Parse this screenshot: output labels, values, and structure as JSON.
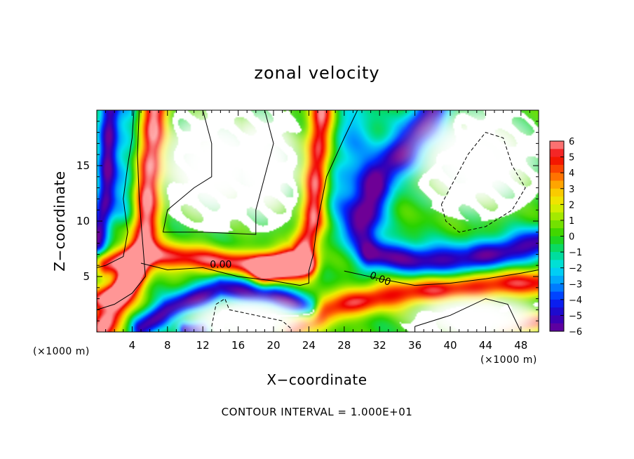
{
  "chart_data": {
    "type": "heatmap",
    "title": "zonal velocity",
    "xlabel": "X−coordinate",
    "ylabel": "Z−coordinate",
    "x_unit": "(×1000 m)",
    "z_unit": "(×1000 m)",
    "xlim": [
      0,
      50
    ],
    "ylim": [
      0,
      20
    ],
    "x_ticks": [
      4,
      8,
      12,
      16,
      20,
      24,
      28,
      32,
      36,
      40,
      44,
      48
    ],
    "x_tick_labels": [
      "4",
      "8",
      "12",
      "16",
      "20",
      "24",
      "28",
      "32",
      "36",
      "40",
      "44",
      "48"
    ],
    "y_ticks": [
      5,
      10,
      15
    ],
    "y_tick_labels": [
      "5",
      "10",
      "15"
    ],
    "colorbar": {
      "min": -6,
      "max": 6,
      "ticks": [
        6,
        5,
        4,
        3,
        2,
        1,
        0,
        -1,
        -2,
        -3,
        -4,
        -5,
        -6
      ],
      "tick_labels": [
        "6",
        "5",
        "4",
        "3",
        "2",
        "1",
        "0",
        "−1",
        "−2",
        "−3",
        "−4",
        "−5",
        "−6"
      ]
    },
    "contour_labels": [
      {
        "text": "0.00",
        "x": 12.8,
        "z": 5.8
      },
      {
        "text": "0.00",
        "x": 30.8,
        "z": 4.9
      }
    ],
    "footer": "CONTOUR INTERVAL = 1.000E+01",
    "features": [
      {
        "kind": "jet",
        "path": [
          [
            0.5,
            0.3
          ],
          [
            2.0,
            2.0
          ],
          [
            4.5,
            5.5
          ],
          [
            5.5,
            9.5
          ],
          [
            6.0,
            15.0
          ],
          [
            6.5,
            20.0
          ]
        ],
        "amp": 6.0,
        "sigma": 1.1
      },
      {
        "kind": "jet",
        "path": [
          [
            1.0,
            6.0
          ],
          [
            6.0,
            7.0
          ],
          [
            12.0,
            6.5
          ],
          [
            18.0,
            6.0
          ],
          [
            24.0,
            6.0
          ]
        ],
        "amp": 5.5,
        "sigma": 0.8
      },
      {
        "kind": "jet",
        "path": [
          [
            19.0,
            5.5
          ],
          [
            23.0,
            6.5
          ],
          [
            24.5,
            10.0
          ],
          [
            25.0,
            15.0
          ],
          [
            25.5,
            20.0
          ]
        ],
        "amp": 6.0,
        "sigma": 1.0
      },
      {
        "kind": "jet",
        "path": [
          [
            22.0,
            0.2
          ],
          [
            26.0,
            2.0
          ],
          [
            32.0,
            3.2
          ],
          [
            40.0,
            4.0
          ],
          [
            50.0,
            4.5
          ]
        ],
        "amp": 5.0,
        "sigma": 0.9
      },
      {
        "kind": "jet",
        "path": [
          [
            0.3,
            3.0
          ],
          [
            2.0,
            3.5
          ],
          [
            4.0,
            5.0
          ]
        ],
        "amp": 4.5,
        "sigma": 0.7
      },
      {
        "kind": "jet",
        "path": [
          [
            46.0,
            0.3
          ],
          [
            50.0,
            1.0
          ]
        ],
        "amp": 4.0,
        "sigma": 0.6
      },
      {
        "kind": "jet",
        "path": [
          [
            0.0,
            8.0
          ],
          [
            1.0,
            12.0
          ],
          [
            1.5,
            20.0
          ]
        ],
        "amp": -5.5,
        "sigma": 0.8
      },
      {
        "kind": "jet",
        "path": [
          [
            5.0,
            0.3
          ],
          [
            8.0,
            2.0
          ],
          [
            14.0,
            4.0
          ],
          [
            20.0,
            3.2
          ],
          [
            24.0,
            2.0
          ]
        ],
        "amp": -5.5,
        "sigma": 0.8
      },
      {
        "kind": "jet",
        "path": [
          [
            31.0,
            7.0
          ],
          [
            36.0,
            6.5
          ],
          [
            42.0,
            6.5
          ],
          [
            50.0,
            8.0
          ]
        ],
        "amp": -5.5,
        "sigma": 1.0
      },
      {
        "kind": "jet",
        "path": [
          [
            30.0,
            9.5
          ],
          [
            32.0,
            14.0
          ],
          [
            36.0,
            17.5
          ],
          [
            38.0,
            20.0
          ]
        ],
        "amp": -5.5,
        "sigma": 1.4
      },
      {
        "kind": "jet",
        "path": [
          [
            3.0,
            11.0
          ],
          [
            3.5,
            16.0
          ],
          [
            3.5,
            20.0
          ]
        ],
        "amp": -2.0,
        "sigma": 1.0
      },
      {
        "kind": "jet",
        "path": [
          [
            28.0,
            12.0
          ],
          [
            29.0,
            18.0
          ]
        ],
        "amp": -2.5,
        "sigma": 2.0
      },
      {
        "kind": "jet",
        "path": [
          [
            10.0,
            0.2
          ],
          [
            12.0,
            0.3
          ]
        ],
        "amp": -5.0,
        "sigma": 0.5
      }
    ],
    "white_regions": [
      {
        "cx": 13.5,
        "cz": 15.0,
        "rx": 7.0,
        "rz": 5.5,
        "power": 2.5
      },
      {
        "cx": 18.5,
        "cz": 15.0,
        "rx": 5.0,
        "rz": 5.5,
        "power": 2.5
      },
      {
        "cx": 43.0,
        "cz": 15.5,
        "rx": 7.5,
        "rz": 5.0,
        "power": 2.5
      },
      {
        "cx": 17.0,
        "cz": 1.0,
        "rx": 7.5,
        "rz": 2.2,
        "power": 2.5
      },
      {
        "cx": 43.0,
        "cz": 1.2,
        "rx": 8.0,
        "rz": 2.2,
        "power": 2.5
      }
    ],
    "contour_lines": [
      {
        "style": "solid",
        "points": [
          [
            0.0,
            5.8
          ],
          [
            1.0,
            6.0
          ],
          [
            3.0,
            6.8
          ],
          [
            3.5,
            9.0
          ],
          [
            3.0,
            12.0
          ],
          [
            3.5,
            15.0
          ],
          [
            4.0,
            17.5
          ],
          [
            4.2,
            20.0
          ]
        ]
      },
      {
        "style": "solid",
        "points": [
          [
            5.0,
            6.2
          ],
          [
            8.0,
            5.6
          ],
          [
            12.0,
            5.8
          ],
          [
            16.0,
            5.0
          ],
          [
            20.0,
            4.6
          ],
          [
            23.0,
            4.2
          ],
          [
            24.0,
            4.4
          ],
          [
            24.0,
            5.5
          ],
          [
            24.5,
            7.0
          ],
          [
            25.0,
            10.0
          ],
          [
            26.0,
            14.0
          ],
          [
            28.0,
            17.5
          ],
          [
            29.5,
            20.0
          ]
        ]
      },
      {
        "style": "solid",
        "points": [
          [
            0.0,
            2.0
          ],
          [
            2.0,
            2.5
          ],
          [
            4.0,
            3.5
          ],
          [
            5.5,
            5.0
          ],
          [
            5.2,
            8.0
          ],
          [
            4.8,
            12.0
          ],
          [
            4.6,
            16.0
          ],
          [
            4.8,
            20.0
          ]
        ]
      },
      {
        "style": "solid",
        "points": [
          [
            28.0,
            5.5
          ],
          [
            32.0,
            4.8
          ],
          [
            36.0,
            4.2
          ],
          [
            40.0,
            4.4
          ],
          [
            44.0,
            4.8
          ],
          [
            48.0,
            5.3
          ],
          [
            50.0,
            5.6
          ]
        ]
      },
      {
        "style": "solid",
        "points": [
          [
            7.5,
            9.0
          ],
          [
            8.0,
            11.0
          ],
          [
            11.0,
            13.0
          ],
          [
            13.0,
            14.0
          ],
          [
            13.0,
            17.0
          ],
          [
            12.0,
            20.0
          ]
        ]
      },
      {
        "style": "solid",
        "points": [
          [
            7.5,
            9.0
          ],
          [
            12.0,
            9.0
          ],
          [
            18.0,
            8.8
          ],
          [
            18.0,
            11.0
          ],
          [
            19.0,
            14.0
          ],
          [
            20.0,
            17.0
          ],
          [
            19.0,
            20.0
          ]
        ]
      },
      {
        "style": "solid",
        "points": [
          [
            36.0,
            0.5
          ],
          [
            40.0,
            1.5
          ],
          [
            44.0,
            3.0
          ],
          [
            46.5,
            2.5
          ],
          [
            48.0,
            0.0
          ]
        ]
      },
      {
        "style": "dashed",
        "points": [
          [
            39.0,
            11.5
          ],
          [
            40.0,
            13.0
          ],
          [
            42.0,
            16.0
          ],
          [
            44.0,
            18.0
          ],
          [
            46.0,
            17.5
          ],
          [
            47.0,
            15.0
          ],
          [
            48.5,
            13.0
          ],
          [
            47.0,
            11.0
          ],
          [
            44.0,
            9.5
          ],
          [
            41.0,
            9.0
          ],
          [
            39.5,
            10.0
          ],
          [
            39.0,
            11.5
          ]
        ]
      },
      {
        "style": "dashed",
        "points": [
          [
            13.0,
            0.5
          ],
          [
            13.5,
            2.5
          ],
          [
            14.5,
            3.0
          ],
          [
            15.0,
            2.0
          ],
          [
            18.0,
            1.5
          ],
          [
            21.0,
            1.0
          ],
          [
            22.0,
            0.3
          ]
        ]
      }
    ]
  }
}
